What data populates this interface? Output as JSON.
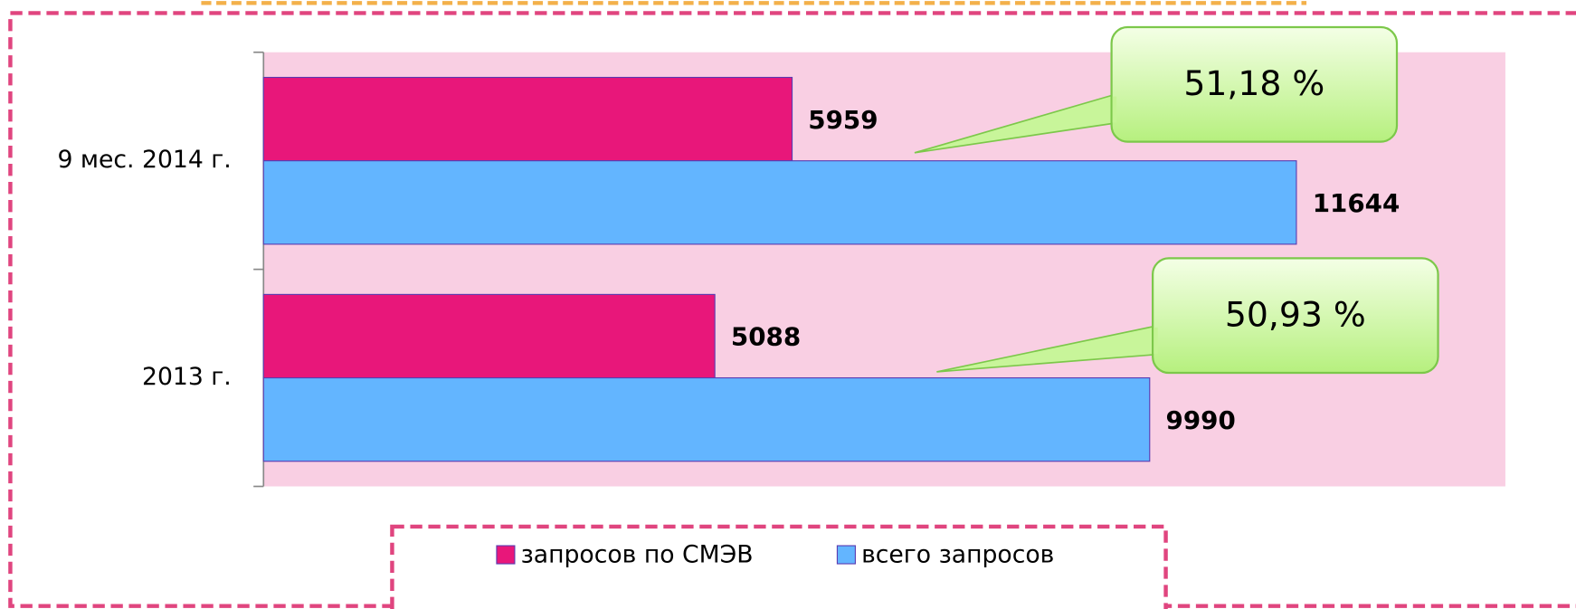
{
  "chart_data": {
    "type": "bar",
    "orientation": "horizontal",
    "categories": [
      "9 мес. 2014 г.",
      "2013 г."
    ],
    "series": [
      {
        "name": "запросов по СМЭВ",
        "color": "#e8177a",
        "values": [
          5959,
          5088
        ]
      },
      {
        "name": "всего запросов",
        "color": "#63b5ff",
        "values": [
          11644,
          9990
        ]
      }
    ],
    "xlim": [
      0,
      14000
    ],
    "annotations": [
      "51,18 %",
      "50,93 %"
    ],
    "plot_background": "#f9cfe3"
  }
}
